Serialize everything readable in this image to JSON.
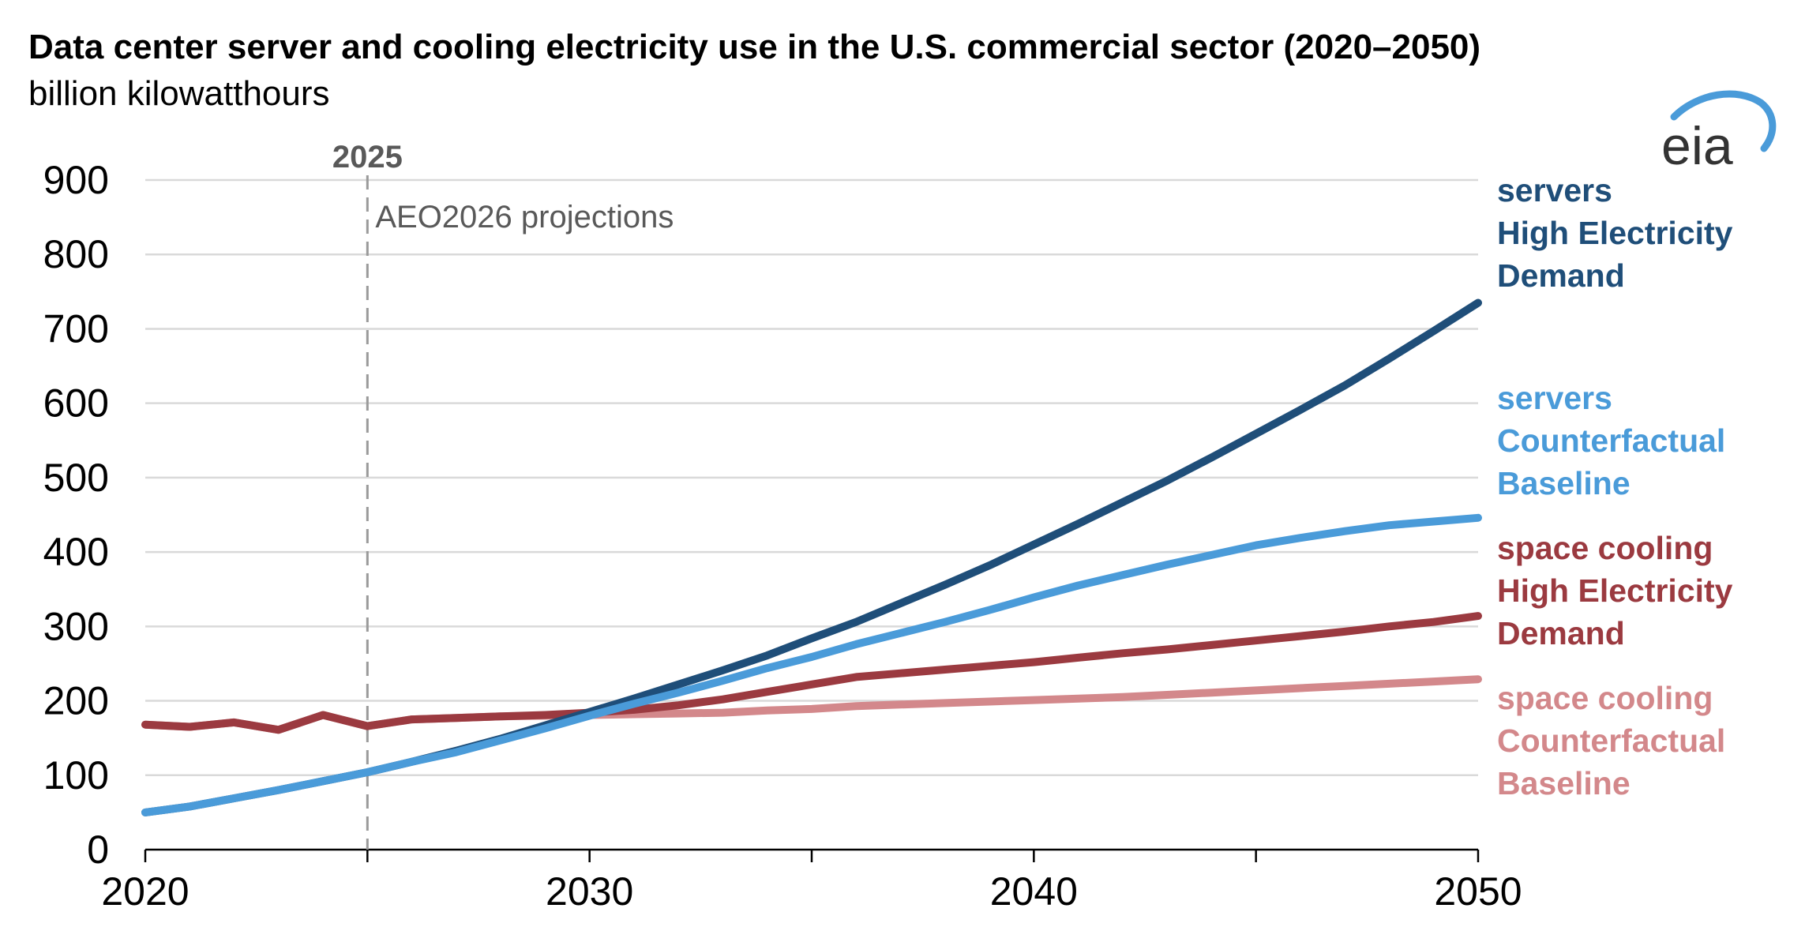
{
  "chart_data": {
    "type": "line",
    "title": "Data center server and cooling electricity use in the U.S. commercial sector (2020–2050)",
    "subtitle": "billion kilowatthours",
    "xlim": [
      2020,
      2050
    ],
    "ylim": [
      0,
      900
    ],
    "x_ticks": [
      "2020",
      "2030",
      "2040",
      "2050"
    ],
    "x_minor_ticks": [
      2025,
      2035,
      2045
    ],
    "y_ticks": [
      "0",
      "100",
      "200",
      "300",
      "400",
      "500",
      "600",
      "700",
      "800",
      "900"
    ],
    "grid": true,
    "annotation": {
      "year": "2025",
      "text": "AEO2026 projections",
      "x": 2025
    },
    "series": [
      {
        "label_lines": [
          "servers",
          "High Electricity",
          "Demand"
        ],
        "color": "#1f4e79",
        "x": [
          2020,
          2021,
          2022,
          2023,
          2024,
          2025,
          2026,
          2027,
          2028,
          2029,
          2030,
          2031,
          2032,
          2033,
          2034,
          2035,
          2036,
          2037,
          2038,
          2039,
          2040,
          2041,
          2042,
          2043,
          2044,
          2045,
          2046,
          2047,
          2048,
          2049,
          2050
        ],
        "y": [
          50,
          58,
          69,
          80,
          92,
          104,
          118,
          133,
          149,
          167,
          185,
          203,
          222,
          241,
          261,
          284,
          306,
          331,
          356,
          382,
          410,
          438,
          467,
          496,
          527,
          559,
          591,
          624,
          660,
          697,
          735
        ]
      },
      {
        "label_lines": [
          "servers",
          "Counterfactual",
          "Baseline"
        ],
        "color": "#4a9bd9",
        "x": [
          2020,
          2021,
          2022,
          2023,
          2024,
          2025,
          2026,
          2027,
          2028,
          2029,
          2030,
          2031,
          2032,
          2033,
          2034,
          2035,
          2036,
          2037,
          2038,
          2039,
          2040,
          2041,
          2042,
          2043,
          2044,
          2045,
          2046,
          2047,
          2048,
          2049,
          2050
        ],
        "y": [
          50,
          58,
          69,
          80,
          92,
          104,
          118,
          131,
          147,
          163,
          180,
          196,
          211,
          227,
          244,
          259,
          276,
          291,
          306,
          322,
          339,
          355,
          369,
          383,
          396,
          409,
          419,
          428,
          436,
          441,
          446
        ]
      },
      {
        "label_lines": [
          "space cooling",
          "High Electricity",
          "Demand"
        ],
        "color": "#9b3a40",
        "x": [
          2020,
          2021,
          2022,
          2023,
          2024,
          2025,
          2026,
          2027,
          2028,
          2029,
          2030,
          2031,
          2032,
          2033,
          2034,
          2035,
          2036,
          2037,
          2038,
          2039,
          2040,
          2041,
          2042,
          2043,
          2044,
          2045,
          2046,
          2047,
          2048,
          2049,
          2050
        ],
        "y": [
          168,
          165,
          171,
          161,
          181,
          166,
          175,
          177,
          179,
          181,
          184,
          188,
          194,
          202,
          212,
          222,
          232,
          237,
          242,
          247,
          252,
          258,
          264,
          269,
          275,
          281,
          287,
          293,
          300,
          306,
          314
        ]
      },
      {
        "label_lines": [
          "space cooling",
          "Counterfactual",
          "Baseline"
        ],
        "color": "#d3888b",
        "x": [
          2020,
          2021,
          2022,
          2023,
          2024,
          2025,
          2026,
          2027,
          2028,
          2029,
          2030,
          2031,
          2032,
          2033,
          2034,
          2035,
          2036,
          2037,
          2038,
          2039,
          2040,
          2041,
          2042,
          2043,
          2044,
          2045,
          2046,
          2047,
          2048,
          2049,
          2050
        ],
        "y": [
          168,
          165,
          171,
          161,
          181,
          166,
          175,
          177,
          179,
          180,
          181,
          182,
          183,
          184,
          187,
          189,
          193,
          195,
          197,
          199,
          201,
          203,
          205,
          208,
          211,
          214,
          217,
          220,
          223,
          226,
          229
        ]
      }
    ]
  },
  "logo": {
    "text": "eia",
    "icon": "eia-logo-arc-icon",
    "accent": "#4a9bd9"
  }
}
